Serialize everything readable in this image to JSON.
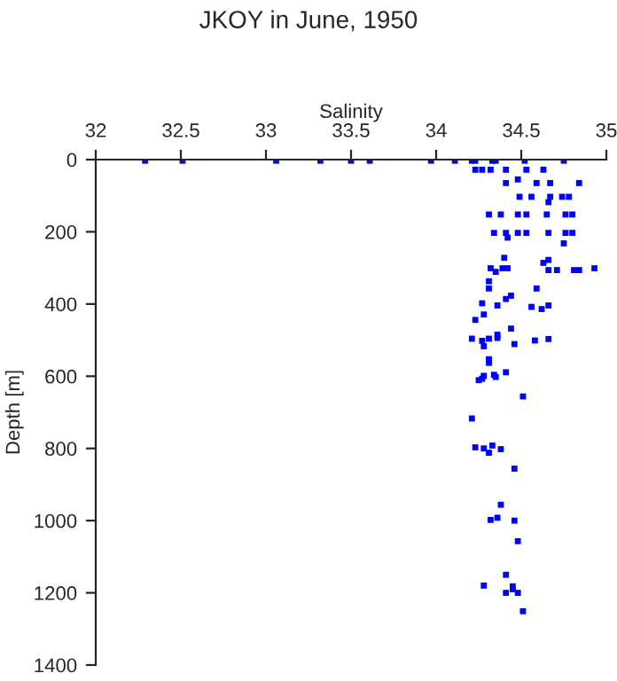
{
  "chart_data": {
    "type": "scatter",
    "title": "JKOY in June, 1950",
    "xlabel": "Salinity",
    "ylabel": "Depth [m]",
    "xlim": [
      32,
      35
    ],
    "xticks": [
      32,
      32.5,
      33,
      33.5,
      34,
      34.5,
      35
    ],
    "ylim": [
      1400,
      0
    ],
    "yticks": [
      0,
      200,
      400,
      600,
      800,
      1000,
      1200,
      1400
    ],
    "grid": false,
    "marker": "square",
    "series": [
      {
        "color": "#0000ff",
        "x": [
          32.29,
          32.51,
          33.06,
          33.32,
          33.5,
          33.61,
          33.97,
          34.11,
          34.21,
          34.23,
          34.33,
          34.35,
          34.52,
          34.75,
          34.23,
          34.27,
          34.32,
          34.41,
          34.53,
          34.63,
          34.48,
          34.41,
          34.59,
          34.67,
          34.84,
          34.49,
          34.56,
          34.67,
          34.74,
          34.78,
          34.66,
          34.31,
          34.38,
          34.48,
          34.53,
          34.65,
          34.76,
          34.8,
          34.34,
          34.41,
          34.48,
          34.53,
          34.66,
          34.76,
          34.8,
          34.42,
          34.75,
          34.4,
          34.63,
          34.66,
          34.32,
          34.39,
          34.42,
          34.66,
          34.71,
          34.81,
          34.84,
          34.93,
          34.35,
          34.31,
          34.31,
          34.59,
          34.44,
          34.41,
          34.27,
          34.36,
          34.56,
          34.62,
          34.66,
          34.28,
          34.23,
          34.44,
          34.36,
          34.36,
          34.21,
          34.27,
          34.31,
          34.28,
          34.46,
          34.58,
          34.66,
          34.31,
          34.31,
          34.28,
          34.34,
          34.35,
          34.41,
          34.25,
          34.27,
          34.51,
          34.21,
          34.23,
          34.28,
          34.33,
          34.38,
          34.31,
          34.46,
          34.38,
          34.36,
          34.32,
          34.46,
          34.48,
          34.41,
          34.45,
          34.45,
          34.28,
          34.41,
          34.48,
          34.51
        ],
        "values": [
          3,
          3,
          3,
          3,
          3,
          3,
          3,
          3,
          3,
          3,
          3,
          3,
          3,
          3,
          28,
          28,
          28,
          28,
          28,
          28,
          55,
          65,
          65,
          65,
          65,
          103,
          103,
          103,
          103,
          103,
          118,
          152,
          152,
          152,
          152,
          152,
          152,
          152,
          203,
          203,
          203,
          203,
          203,
          203,
          203,
          216,
          232,
          272,
          286,
          278,
          301,
          301,
          301,
          306,
          306,
          306,
          306,
          301,
          311,
          337,
          357,
          357,
          377,
          386,
          398,
          404,
          408,
          414,
          404,
          429,
          444,
          468,
          485,
          494,
          496,
          502,
          496,
          517,
          511,
          501,
          497,
          553,
          563,
          599,
          596,
          602,
          589,
          611,
          607,
          656,
          717,
          797,
          800,
          792,
          802,
          812,
          856,
          956,
          992,
          998,
          1000,
          1057,
          1150,
          1182,
          1190,
          1180,
          1200,
          1200,
          1251
        ]
      }
    ]
  }
}
